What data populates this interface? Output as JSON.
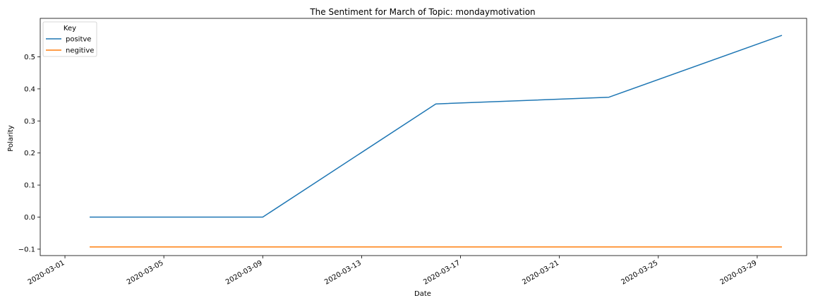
{
  "chart_data": {
    "type": "line",
    "title": "The Sentiment for March of Topic: mondaymotivation",
    "xlabel": "Date",
    "ylabel": "Polarity",
    "x_ticks": [
      "2020-03-01",
      "2020-03-05",
      "2020-03-09",
      "2020-03-13",
      "2020-03-17",
      "2020-03-21",
      "2020-03-25",
      "2020-03-29"
    ],
    "y_ticks": [
      "−0.1",
      "0.0",
      "0.1",
      "0.2",
      "0.3",
      "0.4",
      "0.5"
    ],
    "xlim": [
      "2020-02-29",
      "2020-03-31"
    ],
    "ylim": [
      -0.12,
      0.62
    ],
    "grid": false,
    "legend": {
      "title": "Key",
      "placement": "top-left"
    },
    "series": [
      {
        "name": "positve",
        "color": "#1f77b4",
        "x": [
          "2020-03-02",
          "2020-03-09",
          "2020-03-16",
          "2020-03-23",
          "2020-03-30"
        ],
        "y": [
          0.0,
          0.0,
          0.353,
          0.374,
          0.567
        ]
      },
      {
        "name": "negitive",
        "color": "#ff7f0e",
        "x": [
          "2020-03-02",
          "2020-03-09",
          "2020-03-16",
          "2020-03-23",
          "2020-03-30"
        ],
        "y": [
          -0.093,
          -0.093,
          -0.093,
          -0.093,
          -0.093
        ]
      }
    ]
  }
}
